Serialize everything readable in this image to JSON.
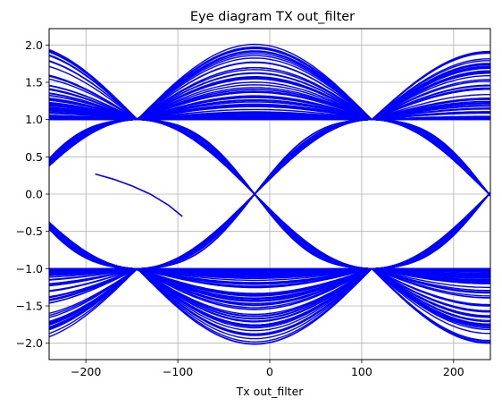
{
  "chart_data": {
    "type": "line",
    "title": "Eye diagram TX out_filter",
    "xlabel": "Tx out_filter",
    "ylabel": "",
    "xlim": [
      -240,
      240
    ],
    "ylim": [
      -2.22,
      2.22
    ],
    "xticks": [
      -200,
      -100,
      0,
      100,
      200
    ],
    "yticks": [
      -2.0,
      -1.5,
      -1.0,
      -0.5,
      0.0,
      0.5,
      1.0,
      1.5,
      2.0
    ],
    "grid": true,
    "legend": "none",
    "line_color": "#0000ff",
    "symbol_levels": [
      -1,
      1
    ],
    "symbol_period": 255,
    "crossing_points": [
      -144,
      111
    ],
    "peak_times": [
      -16,
      239
    ],
    "max_amplitude": 2.02,
    "trace_count": 240,
    "eye_opening_edges": {
      "left_eye": {
        "left_x": -218,
        "right_x": -72,
        "center_y": 0.0
      },
      "right_eye": {
        "left_x": 37,
        "right_x": 183,
        "center_y": 0.0
      }
    },
    "outlier_trace": {
      "x": [
        -190,
        -170,
        -150,
        -130,
        -110,
        -95
      ],
      "y": [
        0.27,
        0.2,
        0.11,
        0.0,
        -0.15,
        -0.3
      ]
    }
  }
}
